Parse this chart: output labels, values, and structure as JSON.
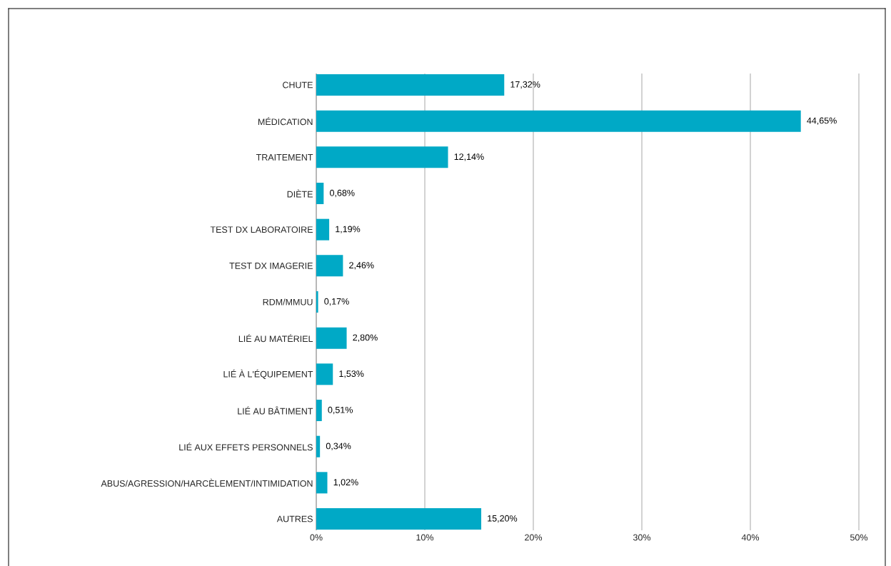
{
  "chart_data": {
    "type": "bar",
    "orientation": "horizontal",
    "categories": [
      "CHUTE",
      "MÉDICATION",
      "TRAITEMENT",
      "DIÈTE",
      "TEST DX LABORATOIRE",
      "TEST DX IMAGERIE",
      "RDM/MMUU",
      "LIÉ AU MATÉRIEL",
      "LIÉ À L'ÉQUIPEMENT",
      "LIÉ AU BÂTIMENT",
      "LIÉ AUX EFFETS PERSONNELS",
      "ABUS/AGRESSION/HARCÈLEMENT/INTIMIDATION",
      "AUTRES"
    ],
    "values": [
      17.32,
      44.65,
      12.14,
      0.68,
      1.19,
      2.46,
      0.17,
      2.8,
      1.53,
      0.51,
      0.34,
      1.02,
      15.2
    ],
    "value_labels": [
      "17,32%",
      "44,65%",
      "12,14%",
      "0,68%",
      "1,19%",
      "2,46%",
      "0,17%",
      "2,80%",
      "1,53%",
      "0,51%",
      "0,34%",
      "1,02%",
      "15,20%"
    ],
    "color": "#00a9c6",
    "xlim": [
      0,
      50
    ],
    "xticks": [
      {
        "value": 0,
        "label": "0%"
      },
      {
        "value": 10,
        "label": "10%"
      },
      {
        "value": 20,
        "label": "20%"
      },
      {
        "value": 30,
        "label": "30%"
      },
      {
        "value": 40,
        "label": "40%"
      },
      {
        "value": 50,
        "label": "50%"
      }
    ],
    "grid": "x"
  }
}
